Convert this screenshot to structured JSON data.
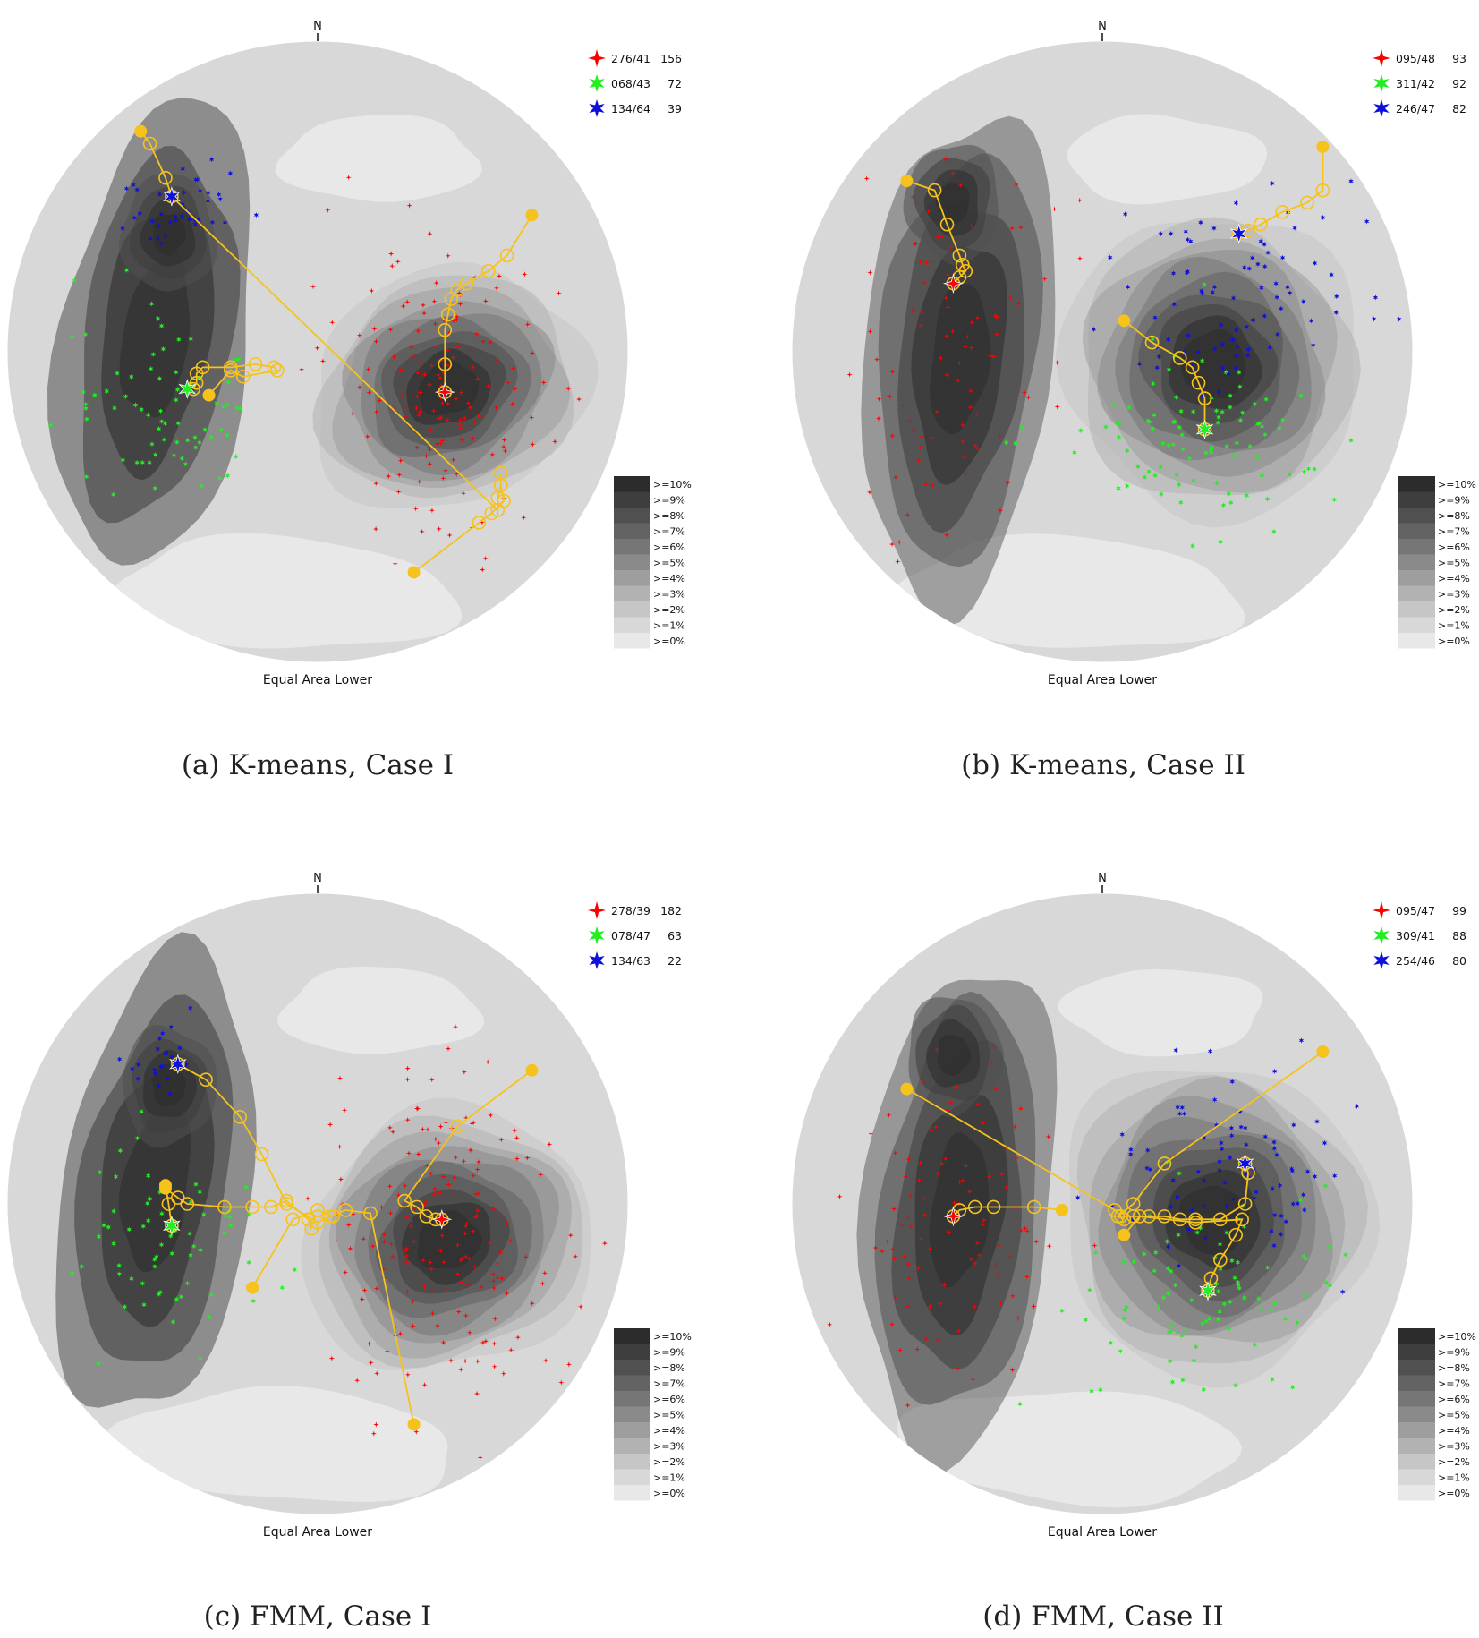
{
  "figure": {
    "panels": [
      {
        "id": "a",
        "caption": "(a)  K-means, Case I",
        "north_label": "N",
        "projection_label": "Equal Area Lower",
        "legend": [
          {
            "orientation": "276/41",
            "count": "156",
            "color": "#ff0000"
          },
          {
            "orientation": "068/43",
            "count": "72",
            "color": "#22ee22"
          },
          {
            "orientation": "134/64",
            "count": "39",
            "color": "#1010dd"
          }
        ]
      },
      {
        "id": "b",
        "caption": "(b)  K-means, Case II",
        "north_label": "N",
        "projection_label": "Equal Area Lower",
        "legend": [
          {
            "orientation": "095/48",
            "count": "93",
            "color": "#ff0000"
          },
          {
            "orientation": "311/42",
            "count": "92",
            "color": "#22ee22"
          },
          {
            "orientation": "246/47",
            "count": "82",
            "color": "#1010dd"
          }
        ]
      },
      {
        "id": "c",
        "caption": "(c)  FMM, Case I",
        "north_label": "N",
        "projection_label": "Equal Area Lower",
        "legend": [
          {
            "orientation": "278/39",
            "count": "182",
            "color": "#ff0000"
          },
          {
            "orientation": "078/47",
            "count": "63",
            "color": "#22ee22"
          },
          {
            "orientation": "134/63",
            "count": "22",
            "color": "#1010dd"
          }
        ]
      },
      {
        "id": "d",
        "caption": "(d)  FMM, Case II",
        "north_label": "N",
        "projection_label": "Equal Area Lower",
        "legend": [
          {
            "orientation": "095/47",
            "count": "99",
            "color": "#ff0000"
          },
          {
            "orientation": "309/41",
            "count": "88",
            "color": "#22ee22"
          },
          {
            "orientation": "254/46",
            "count": "80",
            "color": "#1010dd"
          }
        ]
      }
    ],
    "density_scale": [
      ">=10%",
      ">=9%",
      ">=8%",
      ">=7%",
      ">=6%",
      ">=5%",
      ">=4%",
      ">=3%",
      ">=2%",
      ">=1%",
      ">=0%"
    ],
    "density_colors": [
      "#2c2c2c",
      "#3e3e3e",
      "#505050",
      "#636363",
      "#767676",
      "#8a8a8a",
      "#9e9e9e",
      "#b2b2b2",
      "#c6c6c6",
      "#d8d8d8",
      "#e8e8e8"
    ],
    "trajectory_color": "#f6c21c"
  },
  "chart_data": [
    {
      "type": "scatter",
      "title": "",
      "plot": "lower-hemisphere equal-area stereonet",
      "series": [
        {
          "name": "276/41",
          "count": 156,
          "color": "#ff0000",
          "mean_pole": {
            "trend": 276,
            "plunge": 41
          }
        },
        {
          "name": "068/43",
          "count": 72,
          "color": "#22ee22",
          "mean_pole": {
            "trend": 68,
            "plunge": 43
          }
        },
        {
          "name": "134/64",
          "count": 39,
          "color": "#1010dd",
          "mean_pole": {
            "trend": 134,
            "plunge": 64
          }
        }
      ]
    },
    {
      "type": "scatter",
      "title": "",
      "plot": "lower-hemisphere equal-area stereonet",
      "series": [
        {
          "name": "095/48",
          "count": 93,
          "color": "#ff0000",
          "mean_pole": {
            "trend": 95,
            "plunge": 48
          }
        },
        {
          "name": "311/42",
          "count": 92,
          "color": "#22ee22",
          "mean_pole": {
            "trend": 311,
            "plunge": 42
          }
        },
        {
          "name": "246/47",
          "count": 82,
          "color": "#1010dd",
          "mean_pole": {
            "trend": 246,
            "plunge": 47
          }
        }
      ]
    },
    {
      "type": "scatter",
      "title": "",
      "plot": "lower-hemisphere equal-area stereonet",
      "series": [
        {
          "name": "278/39",
          "count": 182,
          "color": "#ff0000",
          "mean_pole": {
            "trend": 278,
            "plunge": 39
          }
        },
        {
          "name": "078/47",
          "count": 63,
          "color": "#22ee22",
          "mean_pole": {
            "trend": 78,
            "plunge": 47
          }
        },
        {
          "name": "134/63",
          "count": 22,
          "color": "#1010dd",
          "mean_pole": {
            "trend": 134,
            "plunge": 63
          }
        }
      ]
    },
    {
      "type": "scatter",
      "title": "",
      "plot": "lower-hemisphere equal-area stereonet",
      "series": [
        {
          "name": "095/47",
          "count": 99,
          "color": "#ff0000",
          "mean_pole": {
            "trend": 95,
            "plunge": 47
          }
        },
        {
          "name": "309/41",
          "count": 88,
          "color": "#22ee22",
          "mean_pole": {
            "trend": 309,
            "plunge": 41
          }
        },
        {
          "name": "254/46",
          "count": 80,
          "color": "#1010dd",
          "mean_pole": {
            "trend": 254,
            "plunge": 46
          }
        }
      ]
    }
  ]
}
